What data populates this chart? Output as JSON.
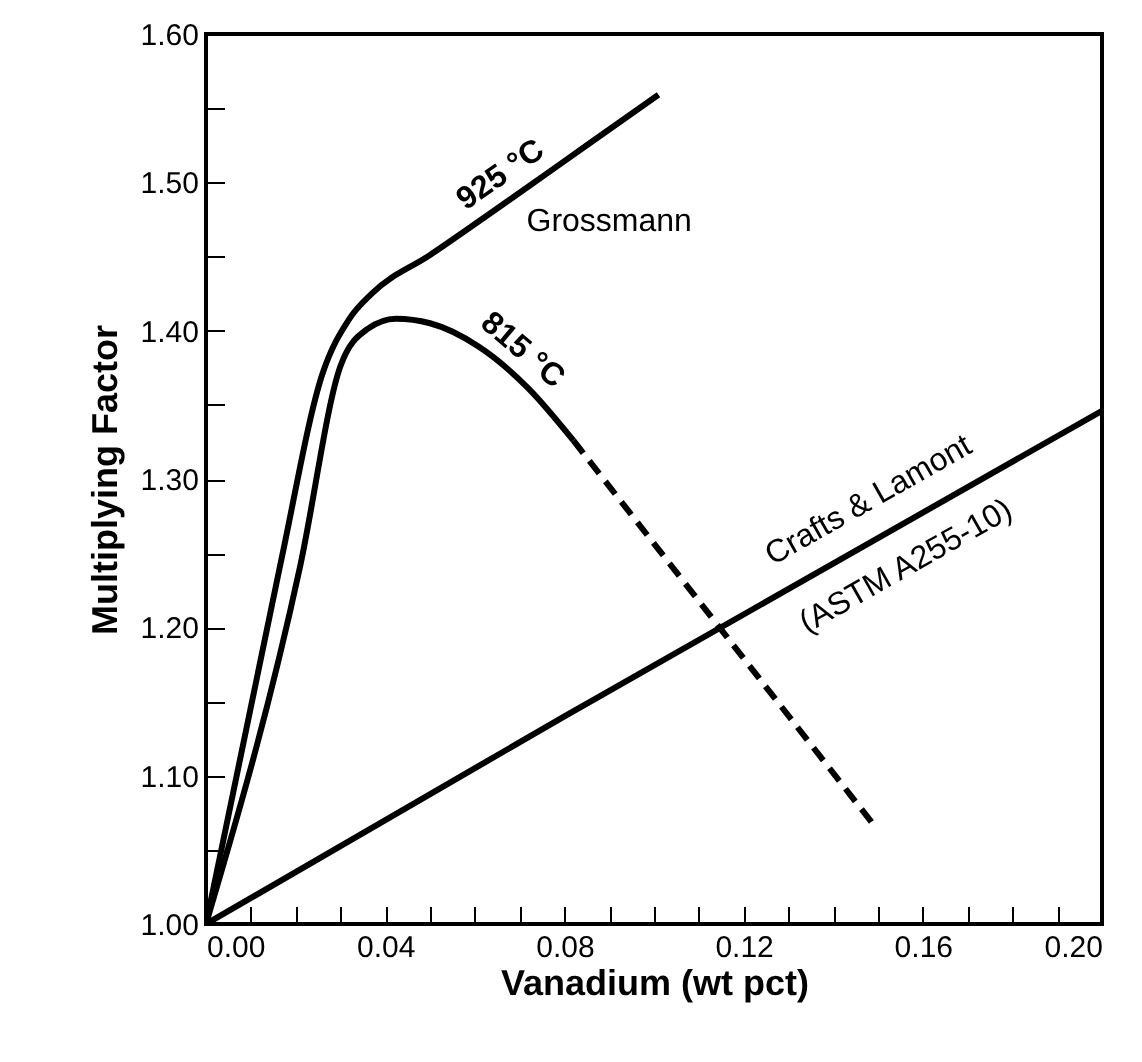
{
  "chart_data": {
    "type": "line",
    "xlabel": "Vanadium (wt pct)",
    "ylabel": "Multiplying Factor",
    "xlim": [
      0,
      0.2
    ],
    "ylim": [
      1.0,
      1.6
    ],
    "xticks": [
      {
        "value": 0,
        "label": "0.00"
      },
      {
        "value": 0.01,
        "label": null
      },
      {
        "value": 0.02,
        "label": null
      },
      {
        "value": 0.03,
        "label": null
      },
      {
        "value": 0.04,
        "label": "0.04"
      },
      {
        "value": 0.05,
        "label": null
      },
      {
        "value": 0.06,
        "label": null
      },
      {
        "value": 0.07,
        "label": null
      },
      {
        "value": 0.08,
        "label": "0.08"
      },
      {
        "value": 0.09,
        "label": null
      },
      {
        "value": 0.1,
        "label": null
      },
      {
        "value": 0.11,
        "label": null
      },
      {
        "value": 0.12,
        "label": "0.12"
      },
      {
        "value": 0.13,
        "label": null
      },
      {
        "value": 0.14,
        "label": null
      },
      {
        "value": 0.15,
        "label": null
      },
      {
        "value": 0.16,
        "label": "0.16"
      },
      {
        "value": 0.17,
        "label": null
      },
      {
        "value": 0.18,
        "label": null
      },
      {
        "value": 0.19,
        "label": null
      },
      {
        "value": 0.2,
        "label": "0.20"
      }
    ],
    "yticks": [
      {
        "value": 1.0,
        "label": "1.00"
      },
      {
        "value": 1.05,
        "label": null
      },
      {
        "value": 1.1,
        "label": "1.10"
      },
      {
        "value": 1.15,
        "label": null
      },
      {
        "value": 1.2,
        "label": "1.20"
      },
      {
        "value": 1.25,
        "label": null
      },
      {
        "value": 1.3,
        "label": "1.30"
      },
      {
        "value": 1.35,
        "label": null
      },
      {
        "value": 1.4,
        "label": "1.40"
      },
      {
        "value": 1.45,
        "label": null
      },
      {
        "value": 1.5,
        "label": "1.50"
      },
      {
        "value": 1.55,
        "label": null
      },
      {
        "value": 1.6,
        "label": "1.60"
      }
    ],
    "series": [
      {
        "name": "925 °C",
        "color": "#000000",
        "line_style": "solid",
        "x": [
          0,
          0.0165,
          0.026,
          0.032,
          0.037,
          0.05,
          0.07,
          0.085,
          0.101
        ],
        "values": [
          1.0,
          1.241,
          1.371,
          1.408,
          1.425,
          1.451,
          1.493,
          1.525,
          1.559
        ]
      },
      {
        "name": "815 °C",
        "color": "#000000",
        "line_style": "solid",
        "x": [
          0,
          0.021,
          0.03,
          0.036,
          0.0424,
          0.05,
          0.061,
          0.072,
          0.082
        ],
        "values": [
          1.0,
          1.241,
          1.376,
          1.401,
          1.408,
          1.405,
          1.389,
          1.361,
          1.326
        ]
      },
      {
        "color": "#000000",
        "line_style": "dashed",
        "x": [
          0.082,
          0.1146,
          0.149
        ],
        "values": [
          1.326,
          1.2,
          1.067
        ]
      },
      {
        "name": "Crafts & Lamont (ASTM A255-10)",
        "color": "#000000",
        "line_style": "solid",
        "x": [
          0,
          0.08,
          0.2
        ],
        "values": [
          1.0,
          1.14,
          1.346
        ]
      }
    ],
    "annotations": [
      "Grossmann"
    ]
  }
}
